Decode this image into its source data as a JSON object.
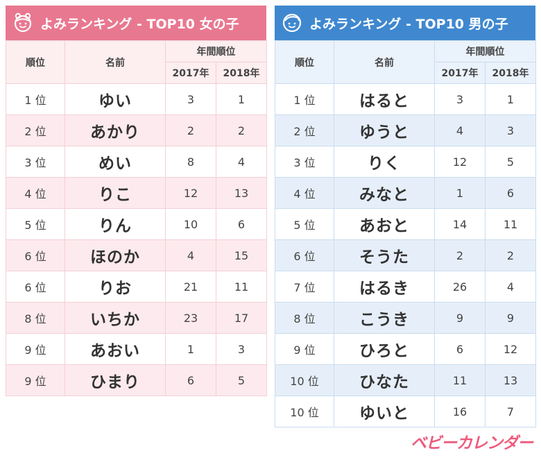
{
  "girls": {
    "title": "よみランキング - TOP10 女の子",
    "headers": {
      "rank": "順位",
      "name": "名前",
      "group": "年間順位",
      "y2017": "2017年",
      "y2018": "2018年"
    },
    "rows": [
      {
        "rank": "1 位",
        "name": "ゆい",
        "y2017": "3",
        "y2018": "1"
      },
      {
        "rank": "2 位",
        "name": "あかり",
        "y2017": "2",
        "y2018": "2"
      },
      {
        "rank": "3 位",
        "name": "めい",
        "y2017": "8",
        "y2018": "4"
      },
      {
        "rank": "4 位",
        "name": "りこ",
        "y2017": "12",
        "y2018": "13"
      },
      {
        "rank": "5 位",
        "name": "りん",
        "y2017": "10",
        "y2018": "6"
      },
      {
        "rank": "6 位",
        "name": "ほのか",
        "y2017": "4",
        "y2018": "15"
      },
      {
        "rank": "6 位",
        "name": "りお",
        "y2017": "21",
        "y2018": "11"
      },
      {
        "rank": "8 位",
        "name": "いちか",
        "y2017": "23",
        "y2018": "17"
      },
      {
        "rank": "9 位",
        "name": "あおい",
        "y2017": "1",
        "y2018": "3"
      },
      {
        "rank": "9 位",
        "name": "ひまり",
        "y2017": "6",
        "y2018": "5"
      }
    ]
  },
  "boys": {
    "title": "よみランキング - TOP10 男の子",
    "headers": {
      "rank": "順位",
      "name": "名前",
      "group": "年間順位",
      "y2017": "2017年",
      "y2018": "2018年"
    },
    "rows": [
      {
        "rank": "1 位",
        "name": "はると",
        "y2017": "3",
        "y2018": "1"
      },
      {
        "rank": "2 位",
        "name": "ゆうと",
        "y2017": "4",
        "y2018": "3"
      },
      {
        "rank": "3 位",
        "name": "りく",
        "y2017": "12",
        "y2018": "5"
      },
      {
        "rank": "4 位",
        "name": "みなと",
        "y2017": "1",
        "y2018": "6"
      },
      {
        "rank": "5 位",
        "name": "あおと",
        "y2017": "14",
        "y2018": "11"
      },
      {
        "rank": "6 位",
        "name": "そうた",
        "y2017": "2",
        "y2018": "2"
      },
      {
        "rank": "7 位",
        "name": "はるき",
        "y2017": "26",
        "y2018": "4"
      },
      {
        "rank": "8 位",
        "name": "こうき",
        "y2017": "9",
        "y2018": "9"
      },
      {
        "rank": "9 位",
        "name": "ひろと",
        "y2017": "6",
        "y2018": "12"
      },
      {
        "rank": "10 位",
        "name": "ひなた",
        "y2017": "11",
        "y2018": "13"
      },
      {
        "rank": "10 位",
        "name": "ゆいと",
        "y2017": "16",
        "y2018": "7"
      }
    ]
  },
  "logo": {
    "text": "ベビーカレンダー"
  },
  "colors": {
    "girls_accent": "#e87890",
    "boys_accent": "#3f88cf",
    "logo": "#ee5a7c"
  },
  "icons": {
    "girls": "girl-face-icon",
    "boys": "boy-face-icon"
  }
}
